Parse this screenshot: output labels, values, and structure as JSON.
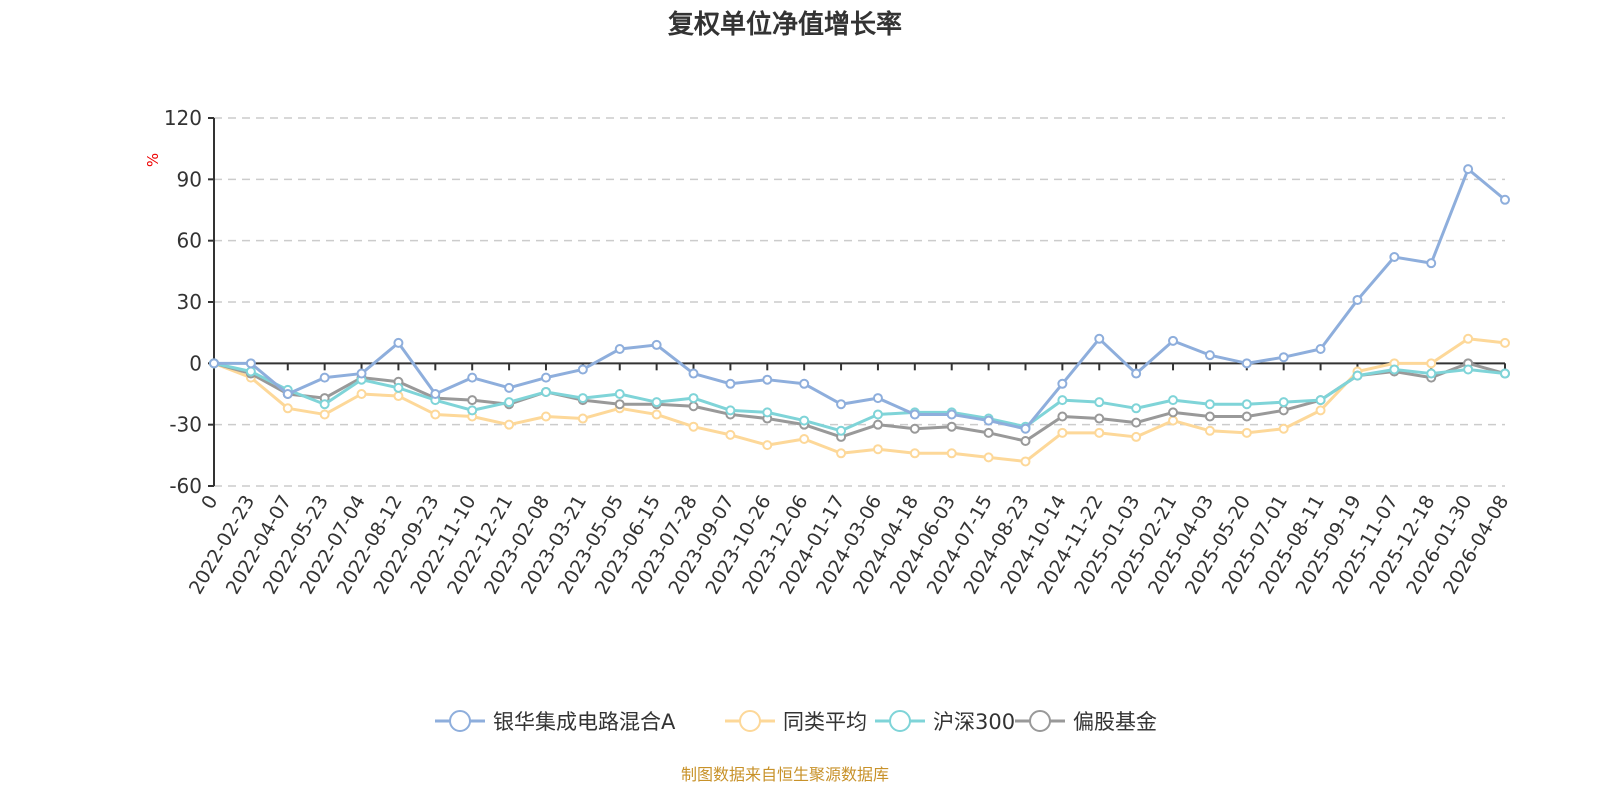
{
  "chart_data": {
    "type": "line",
    "title": "复权单位净值增长率",
    "ylabel": "%",
    "xlabel": "",
    "ylim": [
      -60,
      120
    ],
    "yticks": [
      120,
      90,
      60,
      30,
      0,
      -30,
      -60
    ],
    "grid": true,
    "legend_position": "bottom",
    "categories": [
      "0",
      "2022-02-23",
      "2022-04-07",
      "2022-05-23",
      "2022-07-04",
      "2022-08-12",
      "2022-09-23",
      "2022-11-10",
      "2022-12-21",
      "2023-02-08",
      "2023-03-21",
      "2023-05-05",
      "2023-06-15",
      "2023-07-28",
      "2023-09-07",
      "2023-10-26",
      "2023-12-06",
      "2024-01-17",
      "2024-03-06",
      "2024-04-18",
      "2024-06-03",
      "2024-07-15",
      "2024-08-23",
      "2024-10-14",
      "2024-11-22",
      "2025-01-03",
      "2025-02-21",
      "2025-04-03",
      "2025-05-20",
      "2025-07-01",
      "2025-08-11",
      "2025-09-19",
      "2025-11-07",
      "2025-12-18",
      "2026-01-30",
      "2026-04-08"
    ],
    "series": [
      {
        "name": "银华集成电路混合A",
        "color": "#8eaedc",
        "values": [
          0,
          0,
          -15,
          -7,
          -5,
          10,
          -15,
          -7,
          -12,
          -7,
          -3,
          7,
          9,
          -5,
          -10,
          -8,
          -10,
          -20,
          -17,
          -25,
          -25,
          -28,
          -32,
          -10,
          12,
          -5,
          11,
          4,
          0,
          3,
          7,
          31,
          52,
          49,
          95,
          80
        ]
      },
      {
        "name": "同类平均",
        "color": "#fdd899",
        "values": [
          0,
          -7,
          -22,
          -25,
          -15,
          -16,
          -25,
          -26,
          -30,
          -26,
          -27,
          -22,
          -25,
          -31,
          -35,
          -40,
          -37,
          -44,
          -42,
          -44,
          -44,
          -46,
          -48,
          -34,
          -34,
          -36,
          -28,
          -33,
          -34,
          -32,
          -23,
          -4,
          0,
          0,
          12,
          10
        ]
      },
      {
        "name": "沪深300",
        "color": "#7fd4d8",
        "values": [
          0,
          -4,
          -13,
          -20,
          -8,
          -12,
          -18,
          -23,
          -19,
          -14,
          -17,
          -15,
          -19,
          -17,
          -23,
          -24,
          -28,
          -33,
          -25,
          -24,
          -24,
          -27,
          -31,
          -18,
          -19,
          -22,
          -18,
          -20,
          -20,
          -19,
          -18,
          -6,
          -3,
          -5,
          -3,
          -5
        ]
      },
      {
        "name": "偏股基金",
        "color": "#999999",
        "values": [
          0,
          -5,
          -15,
          -17,
          -7,
          -9,
          -17,
          -18,
          -20,
          -14,
          -18,
          -20,
          -20,
          -21,
          -25,
          -27,
          -30,
          -36,
          -30,
          -32,
          -31,
          -34,
          -38,
          -26,
          -27,
          -29,
          -24,
          -26,
          -26,
          -23,
          -18,
          -6,
          -4,
          -7,
          0,
          -5
        ]
      }
    ]
  },
  "footer": {
    "source": "制图数据来自恒生聚源数据库"
  }
}
